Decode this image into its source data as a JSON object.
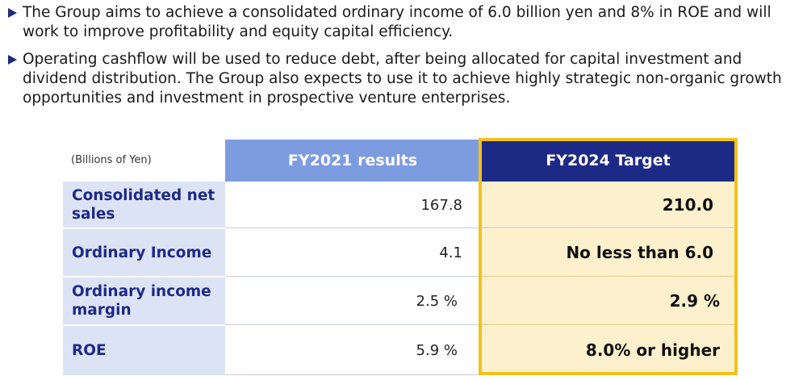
{
  "bullets": [
    "The Group aims to achieve a consolidated ordinary income of 6.0 billion yen and 8% in ROE and will work to improve profitability and equity capital efficiency.",
    "Operating cashflow will be used to reduce debt, after being allocated for capital investment and dividend distribution. The Group also expects to use it to achieve highly strategic non-organic growth opportunities and investment in prospective venture enterprises."
  ],
  "table": {
    "unit": "(Billions of Yen)",
    "headers": {
      "results": "FY2021 results",
      "target": "FY2024 Target"
    },
    "rows": [
      {
        "label": "Consolidated net sales",
        "results": "167.8",
        "target": "210.0"
      },
      {
        "label": "Ordinary Income",
        "results": "4.1",
        "target": "No less than 6.0"
      },
      {
        "label": "Ordinary income margin",
        "results": "2.5 %",
        "target": "2.9 %"
      },
      {
        "label": "ROE",
        "results": "5.9 %",
        "target": "8.0% or higher"
      }
    ]
  },
  "colors": {
    "results_header": "#7d9ce0",
    "target_header": "#1d2a85",
    "label_bg": "#dce3f5",
    "target_bg": "#fdf0cc",
    "highlight_border": "#f3c21a"
  }
}
